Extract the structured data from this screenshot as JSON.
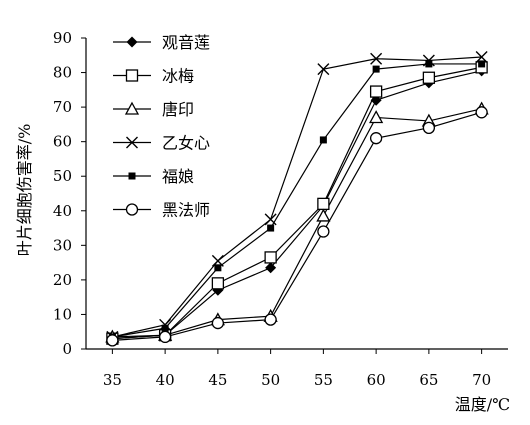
{
  "chart_data": {
    "type": "line",
    "xlabel": "温度/℃",
    "ylabel": "叶片细胞伤害率/%",
    "x": [
      35,
      40,
      45,
      50,
      55,
      60,
      65,
      70
    ],
    "xlim": [
      32.5,
      72.5
    ],
    "ylim": [
      0,
      90
    ],
    "yticks": [
      0,
      10,
      20,
      30,
      40,
      50,
      60,
      70,
      80,
      90
    ],
    "grid": false,
    "legend_position": "top-left",
    "series": [
      {
        "name": "观音莲",
        "marker": "diamond",
        "values": [
          3,
          4,
          17,
          23.5,
          41.5,
          72,
          77,
          80.5
        ]
      },
      {
        "name": "冰梅",
        "marker": "square",
        "values": [
          3,
          4,
          19,
          26.5,
          42,
          74.5,
          78.5,
          81.5
        ]
      },
      {
        "name": "唐印",
        "marker": "triangle",
        "values": [
          3.5,
          4,
          8.5,
          9.5,
          38.5,
          67,
          66,
          69.5
        ]
      },
      {
        "name": "乙女心",
        "marker": "x",
        "values": [
          3.5,
          7,
          25.5,
          37.5,
          81,
          84,
          83.5,
          84.5
        ]
      },
      {
        "name": "福娘",
        "marker": "small-square",
        "values": [
          3.5,
          6,
          23.5,
          35,
          60.5,
          81,
          82.5,
          82.5
        ]
      },
      {
        "name": "黑法师",
        "marker": "circle",
        "values": [
          2.5,
          3.5,
          7.5,
          8.5,
          34,
          61,
          64,
          68.5
        ]
      }
    ]
  }
}
